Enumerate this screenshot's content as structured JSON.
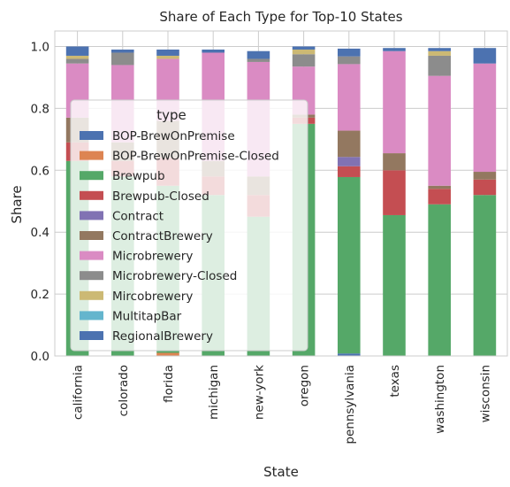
{
  "chart_data": {
    "type": "bar",
    "stacked": true,
    "title": "Share of Each Type for Top-10 States",
    "xlabel": "State",
    "ylabel": "Share",
    "ylim": [
      0,
      1.05
    ],
    "yticks": [
      "0.0",
      "0.2",
      "0.4",
      "0.6",
      "0.8",
      "1.0"
    ],
    "grid": true,
    "legend_title": "type",
    "legend_position": "center-left",
    "categories": [
      "california",
      "colorado",
      "florida",
      "michigan",
      "new-york",
      "oregon",
      "pennsylvania",
      "texas",
      "washington",
      "wisconsin"
    ],
    "series": [
      {
        "name": "BOP-BrewOnPremise",
        "color": "#4c72b0",
        "values": [
          0.0,
          0.0,
          0.0,
          0.0,
          0.0,
          0.0,
          0.008,
          0.0,
          0.0,
          0.0
        ]
      },
      {
        "name": "BOP-BrewOnPremise-Closed",
        "color": "#dd8452",
        "values": [
          0.0,
          0.0,
          0.01,
          0.0,
          0.0,
          0.0,
          0.0,
          0.0,
          0.0,
          0.0
        ]
      },
      {
        "name": "Brewpub",
        "color": "#55a868",
        "values": [
          0.63,
          0.58,
          0.54,
          0.52,
          0.45,
          0.75,
          0.57,
          0.455,
          0.49,
          0.52
        ]
      },
      {
        "name": "Brewpub-Closed",
        "color": "#c44e52",
        "values": [
          0.06,
          0.05,
          0.09,
          0.06,
          0.07,
          0.02,
          0.035,
          0.145,
          0.05,
          0.05
        ]
      },
      {
        "name": "Contract",
        "color": "#8172b3",
        "values": [
          0.0,
          0.0,
          0.0,
          0.0,
          0.0,
          0.0,
          0.03,
          0.0,
          0.0,
          0.0
        ]
      },
      {
        "name": "ContractBrewery",
        "color": "#937860",
        "values": [
          0.08,
          0.06,
          0.12,
          0.05,
          0.06,
          0.01,
          0.085,
          0.055,
          0.01,
          0.025
        ]
      },
      {
        "name": "Microbrewery",
        "color": "#da8bc3",
        "values": [
          0.175,
          0.25,
          0.2,
          0.35,
          0.37,
          0.155,
          0.215,
          0.33,
          0.355,
          0.35
        ]
      },
      {
        "name": "Microbrewery-Closed",
        "color": "#8c8c8c",
        "values": [
          0.015,
          0.04,
          0.0,
          0.0,
          0.01,
          0.04,
          0.025,
          0.0,
          0.065,
          0.0
        ]
      },
      {
        "name": "Mircobrewery",
        "color": "#ccb974",
        "values": [
          0.01,
          0.0,
          0.01,
          0.0,
          0.0,
          0.015,
          0.0,
          0.0,
          0.015,
          0.0
        ]
      },
      {
        "name": "MultitapBar",
        "color": "#64b5cd",
        "values": [
          0.0,
          0.0,
          0.0,
          0.0,
          0.0,
          0.0,
          0.0,
          0.0,
          0.0,
          0.0
        ]
      },
      {
        "name": "RegionalBrewery",
        "color": "#4c72b0",
        "values": [
          0.03,
          0.01,
          0.02,
          0.01,
          0.025,
          0.01,
          0.025,
          0.01,
          0.01,
          0.05
        ]
      }
    ]
  }
}
